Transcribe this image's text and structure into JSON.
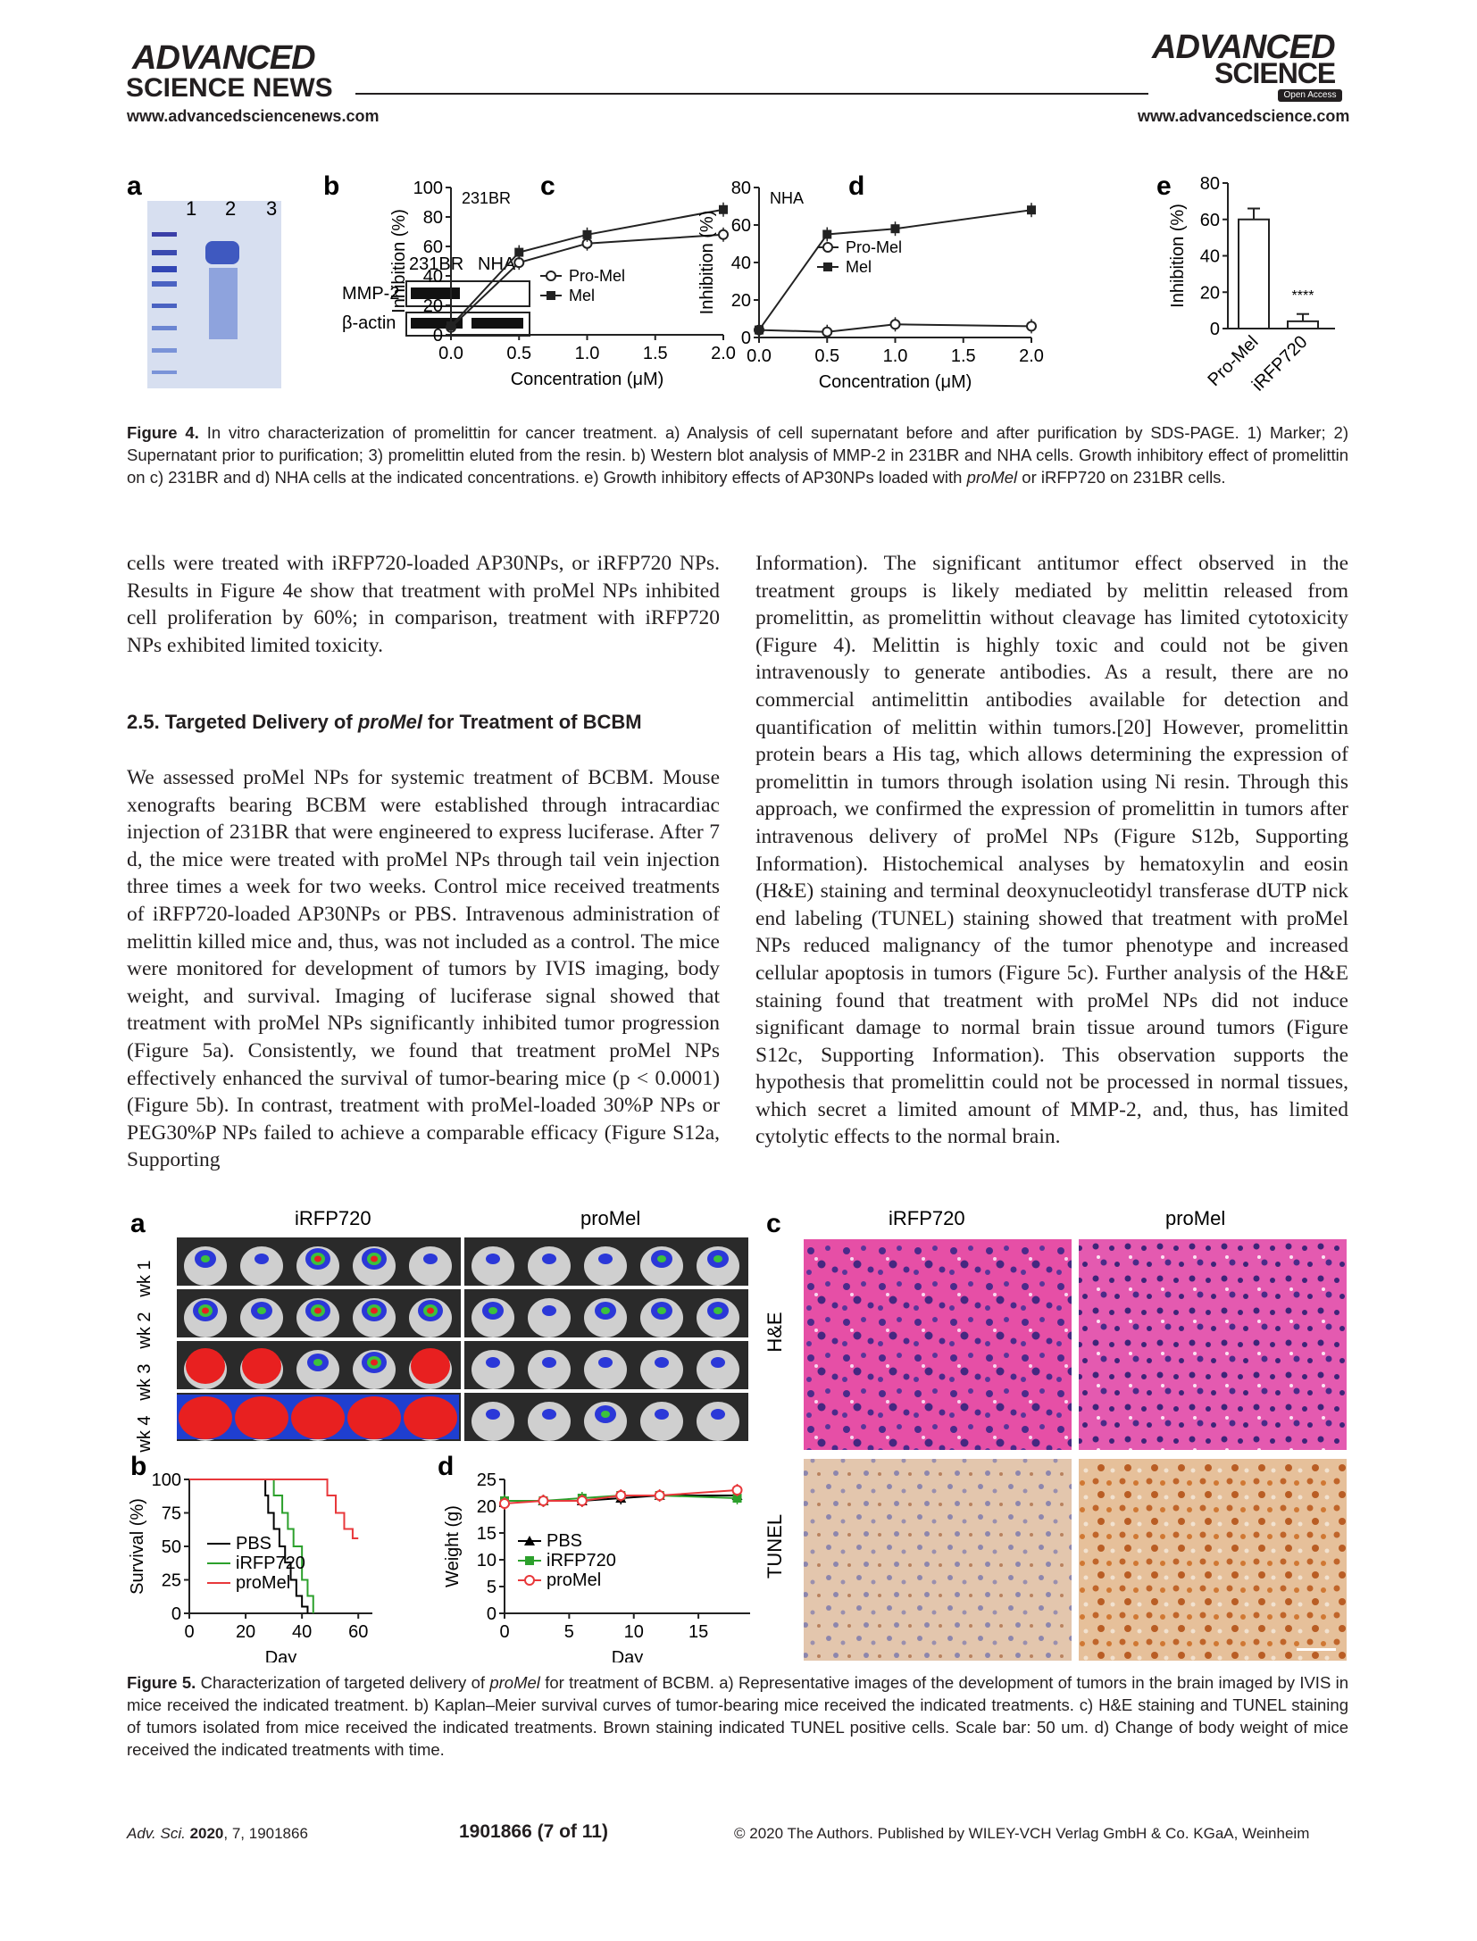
{
  "header": {
    "left_logo_line1": "ADVANCED",
    "left_logo_line2": "SCIENCE NEWS",
    "left_url": "www.advancedsciencenews.com",
    "right_logo_line1": "ADVANCED",
    "right_logo_line2": "SCIENCE",
    "right_badge": "Open Access",
    "right_url": "www.advancedscience.com"
  },
  "figure4": {
    "panel_a": {
      "letter": "a",
      "lanes": [
        "1",
        "2",
        "3"
      ]
    },
    "panel_b": {
      "letter": "b",
      "columns": [
        "231BR",
        "NHA"
      ],
      "rows": [
        "MMP-2",
        "β-actin"
      ]
    },
    "caption_label": "Figure 4.",
    "caption_text": " In vitro characterization of promelittin for cancer treatment. a) Analysis of cell supernatant before and after purification by SDS-PAGE. 1) Marker; 2) Supernatant prior to purification; 3) promelittin eluted from the resin. b) Western blot analysis of MMP-2 in 231BR and NHA cells. Growth inhibitory effect of promelittin on c) 231BR and d) NHA cells at the indicated concentrations. e) Growth inhibitory effects of AP30NPs loaded with ",
    "caption_italic": "proMel",
    "caption_tail": " or iRFP720 on 231BR cells."
  },
  "chart_data": [
    {
      "id": "fig4c",
      "type": "line",
      "panel": "c",
      "inset_label": "231BR",
      "xlabel": "Concentration (μM)",
      "ylabel": "Inhibition (%)",
      "xlim": [
        0,
        2
      ],
      "ylim": [
        0,
        100
      ],
      "xticks": [
        "0.0",
        "0.5",
        "1.0",
        "1.5",
        "2.0"
      ],
      "yticks": [
        "0",
        "20",
        "40",
        "60",
        "80",
        "100"
      ],
      "x": [
        0,
        0.5,
        1.0,
        2.0
      ],
      "series": [
        {
          "name": "Pro-Mel",
          "marker": "open-circle",
          "values": [
            5,
            49,
            62,
            68
          ]
        },
        {
          "name": "Mel",
          "marker": "filled-square",
          "values": [
            6,
            56,
            68,
            85
          ]
        }
      ],
      "legend": "bottom-right"
    },
    {
      "id": "fig4d",
      "type": "line",
      "panel": "d",
      "inset_label": "NHA",
      "xlabel": "Concentration (μM)",
      "ylabel": "Inhibition (%)",
      "xlim": [
        0,
        2
      ],
      "ylim": [
        0,
        80
      ],
      "xticks": [
        "0.0",
        "0.5",
        "1.0",
        "1.5",
        "2.0"
      ],
      "yticks": [
        "0",
        "20",
        "40",
        "60",
        "80"
      ],
      "x": [
        0,
        0.5,
        1.0,
        2.0
      ],
      "series": [
        {
          "name": "Pro-Mel",
          "marker": "open-circle",
          "values": [
            4,
            3,
            7,
            6
          ]
        },
        {
          "name": "Mel",
          "marker": "filled-square",
          "values": [
            4,
            55,
            58,
            68
          ]
        }
      ],
      "legend": "center-right"
    },
    {
      "id": "fig4e",
      "type": "bar",
      "panel": "e",
      "ylabel": "Inhibition (%)",
      "ylim": [
        0,
        80
      ],
      "yticks": [
        "0",
        "20",
        "40",
        "60",
        "80"
      ],
      "categories": [
        "Pro-Mel",
        "iRFP720"
      ],
      "values": [
        60,
        4
      ],
      "errors": [
        6,
        4
      ],
      "annotation": "****"
    },
    {
      "id": "fig5b",
      "type": "line",
      "panel": "b",
      "xlabel": "Day",
      "ylabel": "Survival (%)",
      "xlim": [
        0,
        65
      ],
      "ylim": [
        0,
        100
      ],
      "xticks": [
        "0",
        "20",
        "40",
        "60"
      ],
      "yticks": [
        "0",
        "25",
        "50",
        "75",
        "100"
      ],
      "series": [
        {
          "name": "PBS",
          "color": "#000000",
          "x": [
            0,
            27,
            27,
            28,
            28,
            30,
            30,
            32,
            32,
            34,
            34,
            36,
            36,
            38,
            38,
            40,
            40,
            42,
            42
          ],
          "values": [
            100,
            100,
            88,
            88,
            75,
            75,
            63,
            63,
            50,
            50,
            38,
            38,
            25,
            25,
            13,
            13,
            5,
            5,
            0
          ]
        },
        {
          "name": "iRFP720",
          "color": "#2ca02c",
          "x": [
            0,
            30,
            30,
            33,
            33,
            35,
            35,
            37,
            37,
            40,
            40,
            42,
            42,
            44,
            44
          ],
          "values": [
            100,
            100,
            88,
            88,
            75,
            75,
            63,
            63,
            50,
            50,
            25,
            25,
            13,
            13,
            0
          ]
        },
        {
          "name": "proMel",
          "color": "#e8383b",
          "x": [
            0,
            49,
            49,
            52,
            52,
            55,
            55,
            58,
            58,
            60
          ],
          "values": [
            100,
            100,
            88,
            88,
            75,
            75,
            63,
            63,
            56,
            56
          ]
        }
      ],
      "legend": "bottom-left"
    },
    {
      "id": "fig5d",
      "type": "line",
      "panel": "d",
      "xlabel": "Day",
      "ylabel": "Weight (g)",
      "xlim": [
        0,
        19
      ],
      "ylim": [
        0,
        25
      ],
      "xticks": [
        "0",
        "5",
        "10",
        "15"
      ],
      "yticks": [
        "0",
        "5",
        "10",
        "15",
        "20",
        "25"
      ],
      "x": [
        0,
        3,
        6,
        9,
        12,
        18
      ],
      "series": [
        {
          "name": "PBS",
          "color": "#000000",
          "marker": "filled-triangle",
          "values": [
            21,
            21,
            21,
            21.5,
            22,
            22
          ]
        },
        {
          "name": "iRFP720",
          "color": "#2ca02c",
          "marker": "filled-square",
          "values": [
            21,
            21,
            21.5,
            22,
            22,
            21.5
          ]
        },
        {
          "name": "proMel",
          "color": "#e8383b",
          "marker": "open-circle",
          "values": [
            20.5,
            21,
            21,
            22,
            22,
            23
          ]
        }
      ],
      "legend": "bottom-left"
    }
  ],
  "body_left_1": "cells were treated with iRFP720-loaded AP30NPs, or iRFP720 NPs. Results in Figure 4e show that treatment with proMel NPs inhibited cell proliferation by 60%; in comparison, treatment with iRFP720 NPs exhibited limited toxicity.",
  "section_heading_prefix": "2.5. Targeted Delivery of ",
  "section_heading_italic": "proMel",
  "section_heading_suffix": " for Treatment of BCBM",
  "body_left_2": "We assessed proMel NPs for systemic treatment of BCBM. Mouse xenografts bearing BCBM were established through intracardiac injection of 231BR that were engineered to express luciferase. After 7 d, the mice were treated with proMel NPs through tail vein injection three times a week for two weeks. Control mice received treatments of iRFP720-loaded AP30NPs or PBS. Intravenous administration of melittin killed mice and, thus, was not included as a control. The mice were monitored for development of tumors by IVIS imaging, body weight, and survival. Imaging of luciferase signal showed that treatment with proMel NPs significantly inhibited tumor progression (Figure 5a). Consistently, we found that treatment proMel NPs effectively enhanced the survival of tumor-bearing mice (p < 0.0001) (Figure 5b). In contrast, treatment with proMel-loaded 30%P NPs or PEG30%P NPs failed to achieve a comparable efficacy (Figure S12a, Supporting",
  "body_right": "Information). The significant antitumor effect observed in the treatment groups is likely mediated by melittin released from promelittin, as promelittin without cleavage has limited cytotoxicity (Figure 4). Melittin is highly toxic and could not be given intravenously to generate antibodies. As a result, there are no commercial antimelittin antibodies available for detection and quantification of melittin within tumors.[20] However, promelittin protein bears a His tag, which allows determining the expression of promelittin in tumors through isolation using Ni resin. Through this approach, we confirmed the expression of promelittin in tumors after intravenous delivery of proMel NPs (Figure S12b, Supporting Information). Histochemical analyses by hematoxylin and eosin (H&E) staining and terminal deoxynucleotidyl transferase dUTP nick end labeling (TUNEL) staining showed that treatment with proMel NPs reduced malignancy of the tumor phenotype and increased cellular apoptosis in tumors (Figure 5c). Further analysis of the H&E staining found that treatment with proMel NPs did not induce significant damage to normal brain tissue around tumors (Figure S12c, Supporting Information). This observation supports the hypothesis that promelittin could not be processed in normal tissues, which secret a limited amount of MMP-2, and, thus, has limited cytolytic effects to the normal brain.",
  "figure5": {
    "panel_a": {
      "letter": "a",
      "col_labels": [
        "iRFP720",
        "proMel"
      ],
      "row_labels": [
        "wk 1",
        "wk 2",
        "wk 3",
        "wk 4"
      ]
    },
    "panel_c": {
      "letter": "c",
      "col_labels": [
        "iRFP720",
        "proMel"
      ],
      "row_labels": [
        "H&E",
        "TUNEL"
      ]
    },
    "caption_label": "Figure 5.",
    "caption_p1": " Characterization of targeted delivery of ",
    "caption_italic": "proMel",
    "caption_p2": " for treatment of BCBM. a) Representative images of the development of tumors in the brain imaged by IVIS in mice received the indicated treatment. b) Kaplan–Meier survival curves of tumor-bearing mice received the indicated treatments. c) H&E staining and TUNEL staining of tumors isolated from mice received the indicated treatments. Brown staining indicated TUNEL positive cells. Scale bar: 50 um. d) Change of body weight of mice received the indicated treatments with time."
  },
  "footer": {
    "journal": "Adv. Sci.",
    "year": "2020",
    "volume": ", 7, 1901866",
    "page": "1901866  (7 of 11)",
    "copyright": "© 2020 The Authors. Published by WILEY-VCH Verlag GmbH & Co. KGaA, Weinheim"
  }
}
